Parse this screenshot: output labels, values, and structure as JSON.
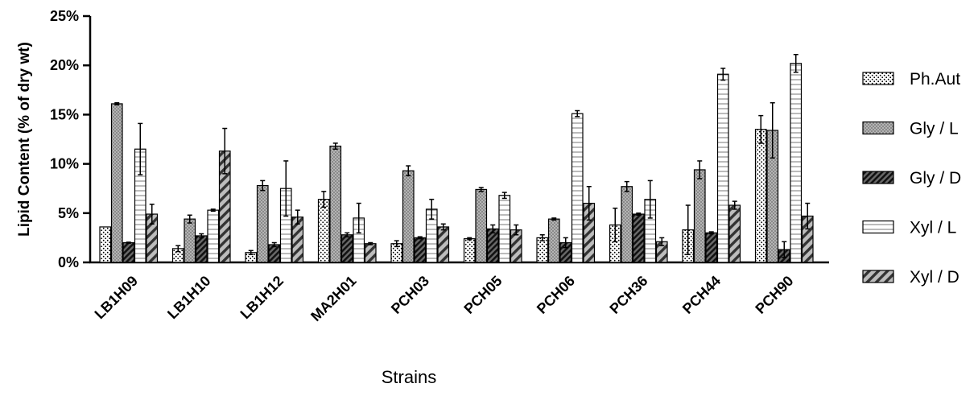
{
  "chart_data": {
    "type": "bar",
    "title": "",
    "xlabel": "Strains",
    "ylabel": "Lipid Content (% of dry wt)",
    "ylim": [
      0,
      25
    ],
    "yticks": [
      "0%",
      "5%",
      "10%",
      "15%",
      "20%",
      "25%"
    ],
    "ytick_values": [
      0,
      5,
      10,
      15,
      20,
      25
    ],
    "grid": false,
    "legend_position": "right",
    "categories": [
      "LB1H09",
      "LB1H10",
      "LB1H12",
      "MA2H01",
      "PCH03",
      "PCH05",
      "PCH06",
      "PCH36",
      "PCH44",
      "PCH90"
    ],
    "series": [
      {
        "name": "Ph.Aut",
        "pattern": "dots",
        "color": "#ffffff",
        "values": [
          3.6,
          1.4,
          1.0,
          6.4,
          1.9,
          2.4,
          2.5,
          3.8,
          3.3,
          13.5
        ],
        "errors": [
          0.0,
          0.3,
          0.2,
          0.8,
          0.3,
          0.1,
          0.3,
          1.7,
          2.5,
          1.4
        ]
      },
      {
        "name": "Gly / L",
        "pattern": "checker",
        "color": "#a8a8a8",
        "values": [
          16.1,
          4.4,
          7.8,
          11.8,
          9.3,
          7.4,
          4.4,
          7.7,
          9.4,
          13.4
        ],
        "errors": [
          0.1,
          0.4,
          0.5,
          0.3,
          0.5,
          0.2,
          0.1,
          0.5,
          0.9,
          2.8
        ]
      },
      {
        "name": "Gly / D",
        "pattern": "dense-diagonal",
        "color": "#505050",
        "values": [
          2.0,
          2.7,
          1.8,
          2.8,
          2.5,
          3.4,
          2.0,
          4.9,
          3.0,
          1.3
        ],
        "errors": [
          0.05,
          0.2,
          0.2,
          0.2,
          0.1,
          0.4,
          0.5,
          0.1,
          0.1,
          0.8
        ]
      },
      {
        "name": "Xyl / L",
        "pattern": "horizontal-lines",
        "color": "#ffffff",
        "values": [
          11.5,
          5.3,
          7.5,
          4.5,
          5.4,
          6.8,
          15.1,
          6.4,
          19.1,
          20.2
        ],
        "errors": [
          2.6,
          0.1,
          2.8,
          1.5,
          1.0,
          0.3,
          0.3,
          1.9,
          0.6,
          0.9
        ]
      },
      {
        "name": "Xyl / D",
        "pattern": "sparse-diagonal",
        "color": "#808080",
        "values": [
          4.9,
          11.3,
          4.6,
          1.9,
          3.6,
          3.3,
          6.0,
          2.1,
          5.8,
          4.7
        ],
        "errors": [
          1.0,
          2.3,
          0.7,
          0.1,
          0.3,
          0.5,
          1.7,
          0.4,
          0.4,
          1.3
        ]
      }
    ]
  }
}
